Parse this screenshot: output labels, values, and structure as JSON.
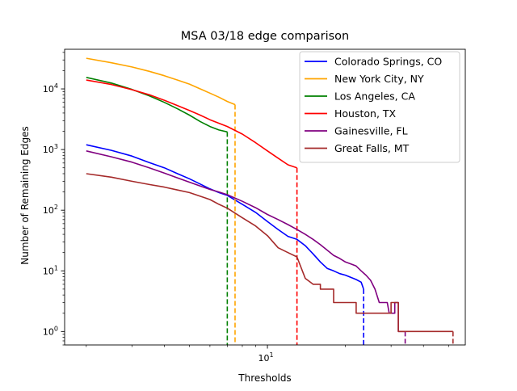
{
  "chart_data": {
    "type": "line",
    "title": "MSA 03/18 edge comparison",
    "xlabel": "Thresholds",
    "ylabel": "Number of Remaining Edges",
    "x_scale": "log",
    "y_scale": "log",
    "xlim": [
      1.65,
      58
    ],
    "ylim": [
      0.6,
      45000
    ],
    "xticks": [
      {
        "value": 10,
        "base": "10",
        "exp": "1"
      }
    ],
    "yticks": [
      {
        "value": 1,
        "base": "10",
        "exp": "0"
      },
      {
        "value": 10,
        "base": "10",
        "exp": "1"
      },
      {
        "value": 100,
        "base": "10",
        "exp": "2"
      },
      {
        "value": 1000,
        "base": "10",
        "exp": "3"
      },
      {
        "value": 10000,
        "base": "10",
        "exp": "4"
      }
    ],
    "grid": false,
    "legend_position": "top-right",
    "series": [
      {
        "name": "Colorado Springs, CO",
        "color": "#0000ff",
        "points": [
          [
            2,
            1200
          ],
          [
            2.5,
            970
          ],
          [
            3,
            780
          ],
          [
            3.5,
            610
          ],
          [
            4,
            500
          ],
          [
            4.5,
            400
          ],
          [
            5,
            330
          ],
          [
            5.5,
            270
          ],
          [
            6,
            225
          ],
          [
            6.5,
            195
          ],
          [
            7,
            175
          ],
          [
            8,
            125
          ],
          [
            9,
            92
          ],
          [
            10,
            65
          ],
          [
            11,
            48
          ],
          [
            12,
            37
          ],
          [
            13,
            33
          ],
          [
            14,
            26
          ],
          [
            15,
            19
          ],
          [
            16,
            14
          ],
          [
            17,
            11
          ],
          [
            18,
            10
          ],
          [
            19,
            9
          ],
          [
            20,
            8.5
          ],
          [
            21,
            7.8
          ],
          [
            22,
            7.2
          ],
          [
            23,
            6.5
          ],
          [
            23.5,
            5
          ]
        ],
        "drop_x": 23.5
      },
      {
        "name": "New York City, NY",
        "color": "#ffa500",
        "points": [
          [
            2,
            32000
          ],
          [
            2.5,
            27000
          ],
          [
            3,
            23000
          ],
          [
            3.5,
            19500
          ],
          [
            4,
            16500
          ],
          [
            4.5,
            14000
          ],
          [
            5,
            12000
          ],
          [
            5.5,
            10000
          ],
          [
            6,
            8500
          ],
          [
            6.5,
            7300
          ],
          [
            7,
            6200
          ],
          [
            7.5,
            5500
          ]
        ],
        "drop_x": 7.5
      },
      {
        "name": "Los Angeles, CA",
        "color": "#008000",
        "points": [
          [
            2,
            15500
          ],
          [
            2.5,
            12500
          ],
          [
            3,
            9800
          ],
          [
            3.5,
            7700
          ],
          [
            4,
            6000
          ],
          [
            4.5,
            4700
          ],
          [
            5,
            3700
          ],
          [
            5.5,
            2900
          ],
          [
            6,
            2400
          ],
          [
            6.5,
            2100
          ],
          [
            7,
            1950
          ]
        ],
        "drop_x": 7
      },
      {
        "name": "Houston, TX",
        "color": "#ff0000",
        "points": [
          [
            2,
            14000
          ],
          [
            2.5,
            11800
          ],
          [
            3,
            9700
          ],
          [
            3.5,
            8000
          ],
          [
            4,
            6500
          ],
          [
            4.5,
            5300
          ],
          [
            5,
            4400
          ],
          [
            5.5,
            3700
          ],
          [
            6,
            3100
          ],
          [
            7,
            2400
          ],
          [
            8,
            1800
          ],
          [
            9,
            1300
          ],
          [
            10,
            950
          ],
          [
            11,
            720
          ],
          [
            12,
            560
          ],
          [
            13,
            500
          ]
        ],
        "drop_x": 13
      },
      {
        "name": "Gainesville, FL",
        "color": "#800080",
        "points": [
          [
            2,
            950
          ],
          [
            2.5,
            760
          ],
          [
            3,
            620
          ],
          [
            3.5,
            500
          ],
          [
            4,
            410
          ],
          [
            4.5,
            340
          ],
          [
            5,
            290
          ],
          [
            5.5,
            250
          ],
          [
            6,
            220
          ],
          [
            6.5,
            200
          ],
          [
            7,
            180
          ],
          [
            8,
            140
          ],
          [
            9,
            110
          ],
          [
            10,
            85
          ],
          [
            11,
            70
          ],
          [
            12,
            58
          ],
          [
            13,
            48
          ],
          [
            14,
            40
          ],
          [
            15,
            33
          ],
          [
            16,
            27
          ],
          [
            17,
            22
          ],
          [
            18,
            18
          ],
          [
            19,
            16
          ],
          [
            20,
            14
          ],
          [
            21,
            13
          ],
          [
            22,
            12
          ],
          [
            23,
            10
          ],
          [
            24,
            8.5
          ],
          [
            25,
            7
          ],
          [
            26,
            5
          ],
          [
            27,
            3
          ],
          [
            29,
            3
          ],
          [
            29.5,
            2
          ],
          [
            31,
            2
          ],
          [
            31,
            3
          ],
          [
            32,
            3
          ],
          [
            32,
            1
          ],
          [
            34,
            1
          ]
        ],
        "drop_x": 34
      },
      {
        "name": "Great Falls, MT",
        "color": "#a52a2a",
        "points": [
          [
            2,
            400
          ],
          [
            2.5,
            350
          ],
          [
            3,
            300
          ],
          [
            3.5,
            265
          ],
          [
            4,
            240
          ],
          [
            4.5,
            215
          ],
          [
            5,
            195
          ],
          [
            5.5,
            170
          ],
          [
            6,
            150
          ],
          [
            6.5,
            125
          ],
          [
            7,
            108
          ],
          [
            8,
            75
          ],
          [
            9,
            55
          ],
          [
            10,
            38
          ],
          [
            11,
            24
          ],
          [
            12,
            20
          ],
          [
            13,
            17
          ],
          [
            14,
            7.5
          ],
          [
            15,
            6
          ],
          [
            16,
            6
          ],
          [
            16,
            5
          ],
          [
            18,
            5
          ],
          [
            18,
            3
          ],
          [
            22,
            3
          ],
          [
            22,
            2
          ],
          [
            30,
            2
          ],
          [
            30,
            3
          ],
          [
            32,
            3
          ],
          [
            32,
            1
          ],
          [
            52,
            1
          ]
        ],
        "drop_x": 52
      }
    ]
  }
}
